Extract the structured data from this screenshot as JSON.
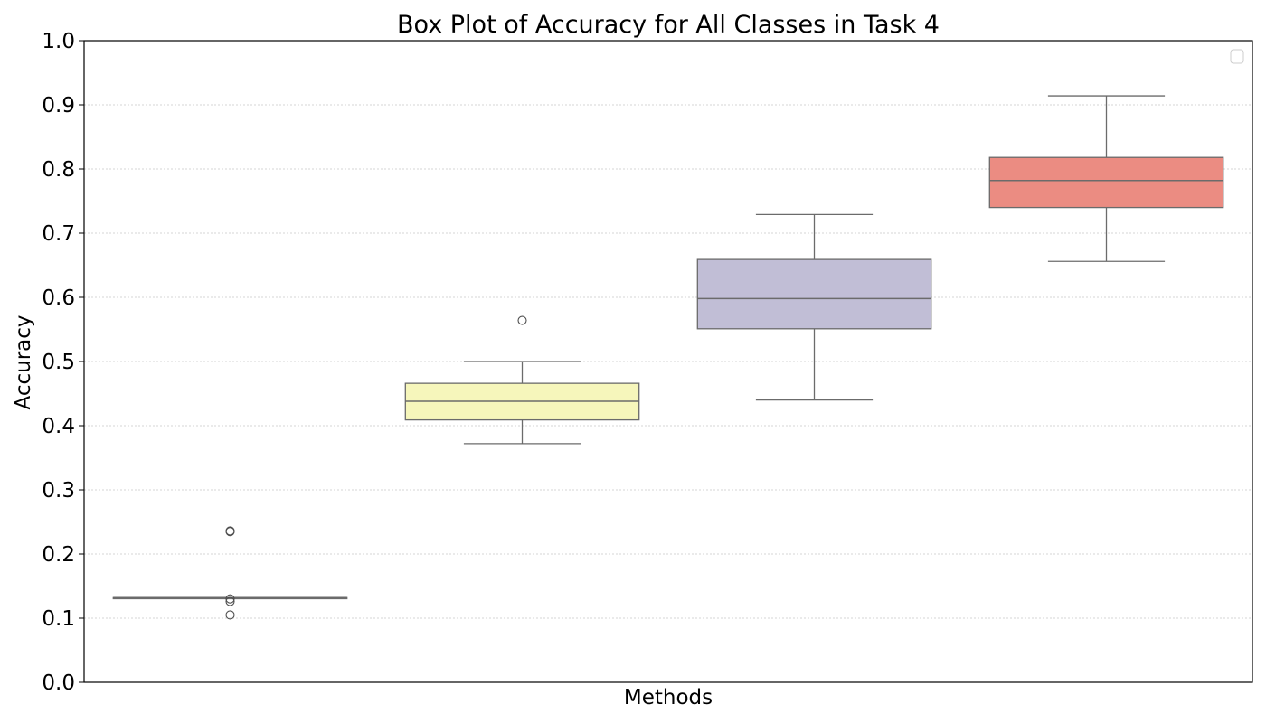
{
  "chart_data": {
    "type": "box",
    "title": "Box Plot of Accuracy for All Classes in Task 4",
    "xlabel": "Methods",
    "ylabel": "Accuracy",
    "ylim": [
      0.0,
      1.0
    ],
    "yticks": [
      "0.0",
      "0.1",
      "0.2",
      "0.3",
      "0.4",
      "0.5",
      "0.6",
      "0.7",
      "0.8",
      "0.9",
      "1.0"
    ],
    "grid": "horizontal-dotted",
    "legend": {
      "placement": "top-right",
      "entries": []
    },
    "boxes": [
      {
        "color": "#8dd3c7",
        "whisker_low": 0.132,
        "q1": 0.132,
        "median": 0.132,
        "q3": 0.132,
        "whisker_high": 0.132,
        "outliers": [
          0.235,
          0.236,
          0.13,
          0.126,
          0.105
        ]
      },
      {
        "color": "#f6f6bb",
        "whisker_low": 0.372,
        "q1": 0.409,
        "median": 0.438,
        "q3": 0.466,
        "whisker_high": 0.5,
        "outliers": [
          0.564
        ]
      },
      {
        "color": "#c1bed6",
        "whisker_low": 0.44,
        "q1": 0.551,
        "median": 0.598,
        "q3": 0.659,
        "whisker_high": 0.729,
        "outliers": []
      },
      {
        "color": "#eb8c82",
        "whisker_low": 0.656,
        "q1": 0.74,
        "median": 0.782,
        "q3": 0.818,
        "whisker_high": 0.914,
        "outliers": []
      }
    ]
  }
}
